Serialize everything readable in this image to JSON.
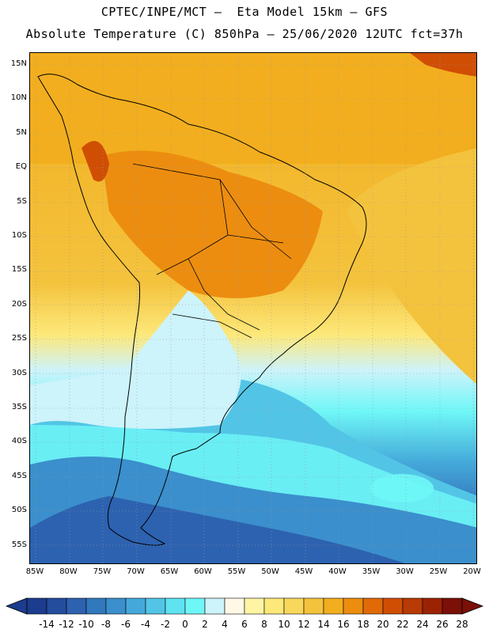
{
  "header": {
    "line1": "CPTEC/INPE/MCT –  Eta Model 15km – GFS",
    "line2": "Absolute Temperature (C) 850hPa – 25/06/2020 12UTC fct=37h"
  },
  "map": {
    "lat_labels": [
      "15N",
      "10N",
      "5N",
      "EQ",
      "5S",
      "10S",
      "15S",
      "20S",
      "25S",
      "30S",
      "35S",
      "40S",
      "45S",
      "50S",
      "55S"
    ],
    "lon_labels": [
      "85W",
      "80W",
      "75W",
      "70W",
      "65W",
      "60W",
      "55W",
      "50W",
      "45W",
      "40W",
      "35W",
      "30W",
      "25W",
      "20W"
    ]
  },
  "colorbar": {
    "colors": [
      "#1c3c8e",
      "#244d9e",
      "#2d62b0",
      "#3278bc",
      "#3b8fcc",
      "#44a9da",
      "#52c5e6",
      "#5fe3f0",
      "#6ff7f7",
      "#cdf3fb",
      "#fff8e6",
      "#fff4a3",
      "#fde87a",
      "#f8d85a",
      "#f4c33e",
      "#f2ae1e",
      "#ec8d10",
      "#e06a08",
      "#d04e04",
      "#b83a04",
      "#9c2204",
      "#7a1008"
    ],
    "labels": [
      "-14",
      "-12",
      "-10",
      "-8",
      "-6",
      "-4",
      "-2",
      "0",
      "2",
      "4",
      "6",
      "8",
      "10",
      "12",
      "14",
      "16",
      "18",
      "20",
      "22",
      "24",
      "26",
      "28"
    ]
  }
}
